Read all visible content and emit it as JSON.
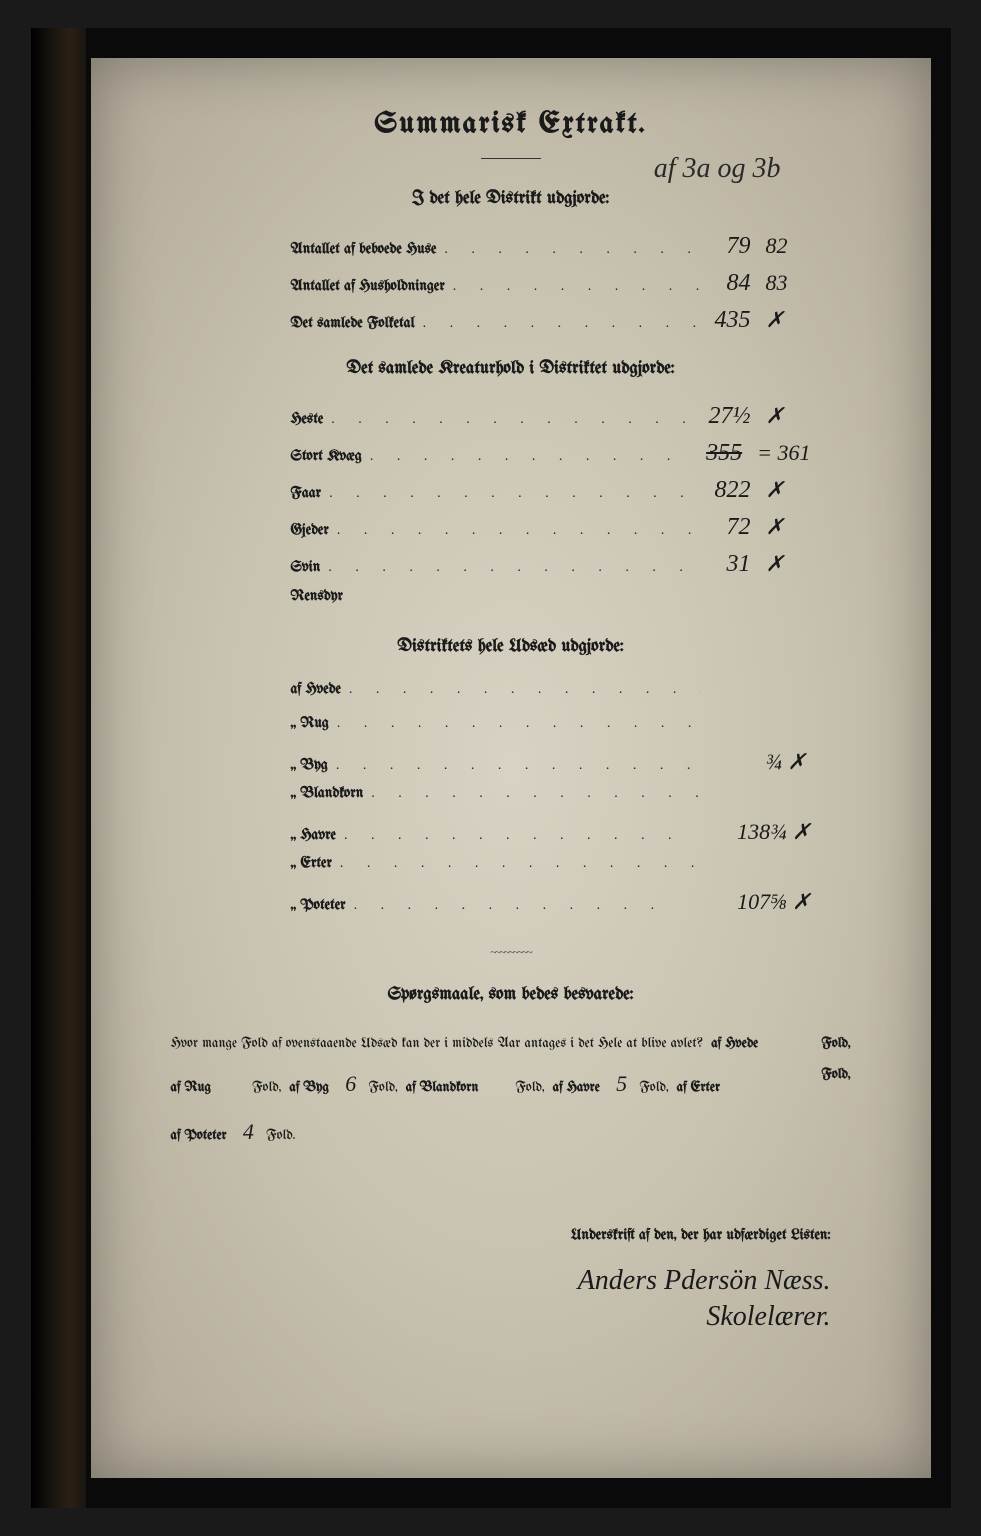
{
  "title": "Summarisk Extrakt.",
  "topAnnotation": "af 3a og 3b",
  "section1": {
    "heading": "I det hele Distrikt udgjorde:",
    "rows": [
      {
        "label": "Antallet af beboede Huse",
        "value": "79",
        "value2": "82"
      },
      {
        "label": "Antallet af Husholdninger",
        "value": "84",
        "value2": "83"
      },
      {
        "label": "Det samlede Folketal",
        "value": "435",
        "value2": "✗"
      }
    ]
  },
  "section2": {
    "heading": "Det samlede Kreaturhold i Distriktet udgjorde:",
    "rows": [
      {
        "label": "Heste",
        "value": "27½",
        "value2": "✗"
      },
      {
        "label": "Stort Kvæg",
        "value": "355",
        "value2": "= 361",
        "strike": true
      },
      {
        "label": "Faar",
        "value": "822",
        "value2": "✗"
      },
      {
        "label": "Gjeder",
        "value": "72",
        "value2": "✗"
      },
      {
        "label": "Svin",
        "value": "31",
        "value2": "✗"
      },
      {
        "label": "Rensdyr",
        "value": "",
        "value2": ""
      }
    ]
  },
  "section3": {
    "heading": "Distriktets hele Udsæd udgjorde:",
    "rows": [
      {
        "label": "af Hvede",
        "value": "",
        "value2": ""
      },
      {
        "label": "„ Rug",
        "value": "",
        "value2": ""
      },
      {
        "label": "„ Byg",
        "value": "",
        "value2": "¾  ✗"
      },
      {
        "label": "„ Blandkorn",
        "value": "",
        "value2": ""
      },
      {
        "label": "„ Havre",
        "value": "",
        "value2": "138¾ ✗"
      },
      {
        "label": "„ Erter",
        "value": "",
        "value2": ""
      },
      {
        "label": "„ Poteter",
        "value": "",
        "value2": "107⅝ ✗"
      }
    ]
  },
  "questions": {
    "heading": "Spørgsmaale, som bedes besvarede:",
    "intro": "Hvor mange Fold af ovenstaaende Udsæd kan der i middels Aar antages i det Hele at blive avlet?",
    "parts": {
      "hvede_label": "af Hvede",
      "fold": "Fold,",
      "foldEnd": "Fold.",
      "rug_label": "af Rug",
      "byg_label": "af Byg",
      "byg_value": "6",
      "blandkorn_label": "af Blandkorn",
      "havre_label": "af Havre",
      "havre_value": "5",
      "erter_label": "af Erter",
      "poteter_label": "af Poteter",
      "poteter_value": "4"
    }
  },
  "signature": {
    "label": "Underskrift af den, der har udfærdiget Listen:",
    "name": "Anders Pdersön Næss.",
    "title": "Skolelærer."
  },
  "colors": {
    "paper": "#d0cab8",
    "ink": "#1a1a1a",
    "handwriting": "#2a2a2a"
  }
}
